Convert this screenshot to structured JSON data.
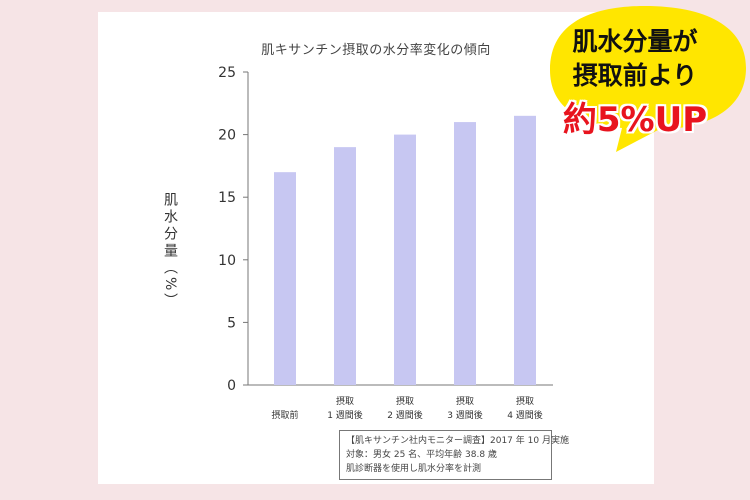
{
  "chart_data": {
    "type": "bar",
    "title": "肌キサンチン摂取の水分率変化の傾向",
    "ylabel": "肌水分量（%）",
    "xlabel": "",
    "categories": [
      [
        "摂取前"
      ],
      [
        "摂取",
        "1 週間後"
      ],
      [
        "摂取",
        "2 週間後"
      ],
      [
        "摂取",
        "3 週間後"
      ],
      [
        "摂取",
        "4 週間後"
      ]
    ],
    "values": [
      17.0,
      19.0,
      20.0,
      21.0,
      21.5
    ],
    "ylim": [
      0,
      25
    ],
    "yticks": [
      0,
      5,
      10,
      15,
      20,
      25
    ],
    "bar_color": "#c7c7f2",
    "grid": false
  },
  "note": {
    "lines": [
      "【肌キサンチン社内モニター調査】2017 年 10 月実施",
      "対象：男女 25 名、平均年齢 38.8 歳",
      "肌診断器を使用し肌水分率を計測"
    ]
  },
  "callout": {
    "line1": "肌水分量が",
    "line2": "摂取前より",
    "line3": "約5%UP",
    "bubble_color": "#ffe600",
    "highlight_color": "#e8141e"
  }
}
